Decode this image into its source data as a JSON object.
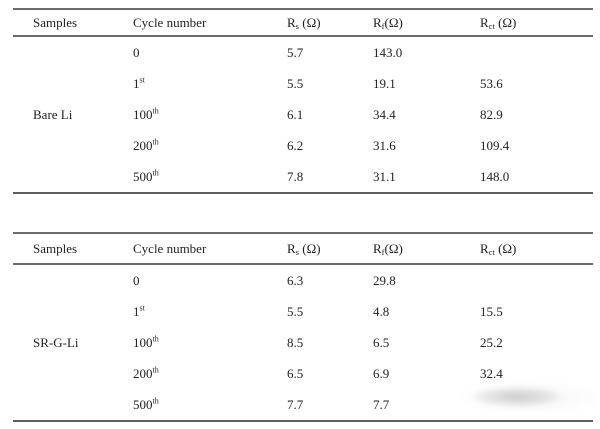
{
  "page": {
    "background": "#ffffff",
    "text_color": "#1f1f1f",
    "rule_color": "#6a6a6a",
    "rule_heavy_color": "#5e5e5e",
    "watermark_color": "#d6d6d6"
  },
  "tables": [
    {
      "sample": "Bare Li",
      "headers": {
        "samples": "Samples",
        "cycle": "Cycle number",
        "rs": {
          "pre": "R",
          "sub": "s",
          "post": " (Ω)"
        },
        "rf": {
          "pre": "R",
          "sub": "f",
          "post": "(Ω)"
        },
        "rct": {
          "pre": "R",
          "sub": "ct",
          "post": " (Ω)"
        }
      },
      "rows": [
        {
          "cycle_base": "0",
          "cycle_sup": "",
          "rs": "5.7",
          "rf": "143.0",
          "rct": ""
        },
        {
          "cycle_base": "1",
          "cycle_sup": "st",
          "rs": "5.5",
          "rf": "19.1",
          "rct": "53.6"
        },
        {
          "cycle_base": "100",
          "cycle_sup": "th",
          "rs": "6.1",
          "rf": "34.4",
          "rct": "82.9"
        },
        {
          "cycle_base": "200",
          "cycle_sup": "th",
          "rs": "6.2",
          "rf": "31.6",
          "rct": "109.4"
        },
        {
          "cycle_base": "500",
          "cycle_sup": "th",
          "rs": "7.8",
          "rf": "31.1",
          "rct": "148.0"
        }
      ]
    },
    {
      "sample": "SR-G-Li",
      "headers": {
        "samples": "Samples",
        "cycle": "Cycle number",
        "rs": {
          "pre": "R",
          "sub": "s",
          "post": " (Ω)"
        },
        "rf": {
          "pre": "R",
          "sub": "f",
          "post": "(Ω)"
        },
        "rct": {
          "pre": "R",
          "sub": "ct",
          "post": " (Ω)"
        }
      },
      "rows": [
        {
          "cycle_base": "0",
          "cycle_sup": "",
          "rs": "6.3",
          "rf": "29.8",
          "rct": ""
        },
        {
          "cycle_base": "1",
          "cycle_sup": "st",
          "rs": "5.5",
          "rf": "4.8",
          "rct": "15.5"
        },
        {
          "cycle_base": "100",
          "cycle_sup": "th",
          "rs": "8.5",
          "rf": "6.5",
          "rct": "25.2"
        },
        {
          "cycle_base": "200",
          "cycle_sup": "th",
          "rs": "6.5",
          "rf": "6.9",
          "rct": "32.4"
        },
        {
          "cycle_base": "500",
          "cycle_sup": "th",
          "rs": "7.7",
          "rf": "7.7",
          "rct": ""
        }
      ]
    }
  ],
  "watermark": {
    "present": true
  }
}
